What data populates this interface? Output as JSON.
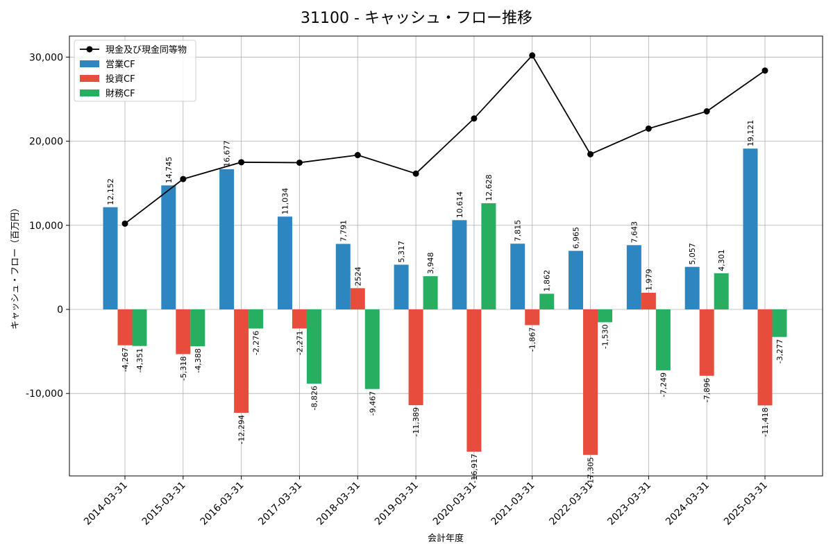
{
  "chart_data": {
    "type": "bar",
    "title": "31100 - キャッシュ・フロー推移",
    "xlabel": "会計年度",
    "ylabel": "キャッシュ・フロー（百万円）",
    "ylim": [
      -19800,
      32500
    ],
    "yticks": [
      -10000,
      0,
      10000,
      20000,
      30000
    ],
    "ytick_labels": [
      "-10,000",
      "0",
      "10,000",
      "20,000",
      "30,000"
    ],
    "grid": true,
    "legend_position": "top-left",
    "categories": [
      "2014-03-31",
      "2015-03-31",
      "2016-03-31",
      "2017-03-31",
      "2018-03-31",
      "2019-03-31",
      "2020-03-31",
      "2021-03-31",
      "2022-03-31",
      "2023-03-31",
      "2024-03-31",
      "2025-03-31"
    ],
    "series": [
      {
        "name": "営業CF",
        "kind": "bar",
        "color": "#2e86c1",
        "values": [
          12152,
          14745,
          16677,
          11034,
          7791,
          5317,
          10614,
          7815,
          6965,
          7643,
          5057,
          19121
        ],
        "labels": [
          "12,152",
          "14,745",
          "16,677",
          "11,034",
          "7,791",
          "5,317",
          "10,614",
          "7,815",
          "6,965",
          "7,643",
          "5,057",
          "19,121"
        ]
      },
      {
        "name": "投資CF",
        "kind": "bar",
        "color": "#e74c3c",
        "values": [
          -4267,
          -5318,
          -12294,
          -2271,
          2524,
          -11389,
          -16917,
          -1867,
          -17305,
          1979,
          -7896,
          -11418
        ],
        "labels": [
          "-4,267",
          "-5,318",
          "-12,294",
          "-2,271",
          "2524",
          "-11,389",
          "-16,917",
          "-1,867",
          "-17,305",
          "1,979",
          "-7,896",
          "-11,418"
        ]
      },
      {
        "name": "財務CF",
        "kind": "bar",
        "color": "#27ae60",
        "values": [
          -4351,
          -4388,
          -2276,
          -8826,
          -9467,
          3948,
          12628,
          1862,
          -1530,
          -7249,
          4301,
          -3277
        ],
        "labels": [
          "-4,351",
          "-4,388",
          "-2,276",
          "-8,826",
          "-9,467",
          "3,948",
          "12,628",
          "1,862",
          "-1,530",
          "-7,249",
          "4,301",
          "-3,277"
        ]
      },
      {
        "name": "現金及び現金同等物",
        "kind": "line",
        "color": "#000000",
        "values": [
          10200,
          15500,
          17500,
          17450,
          18350,
          16150,
          22700,
          30200,
          18450,
          21500,
          23550,
          28400
        ]
      }
    ],
    "legend_order": [
      "現金及び現金同等物",
      "営業CF",
      "投資CF",
      "財務CF"
    ]
  }
}
